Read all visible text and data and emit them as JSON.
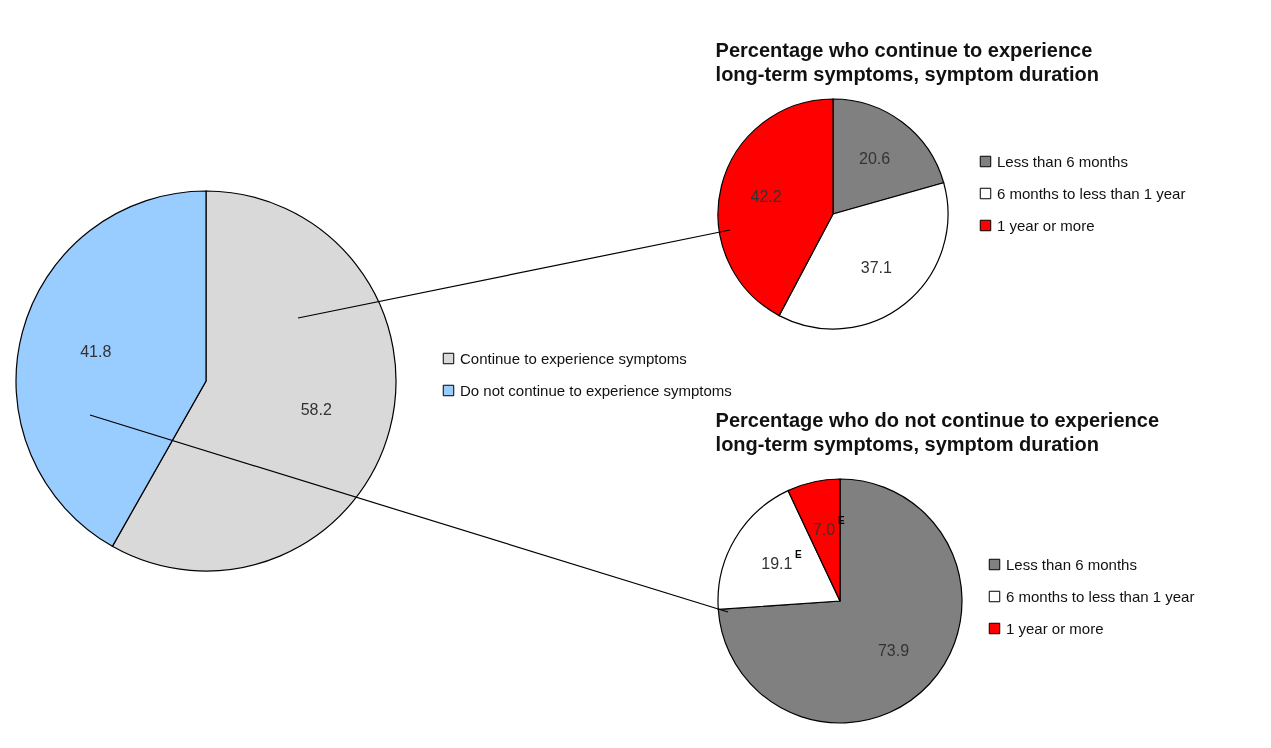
{
  "chart_data": [
    {
      "type": "pie",
      "categories": [
        "Continue to experience symptoms",
        "Do not continue to experience symptoms"
      ],
      "values": [
        58.2,
        41.8
      ],
      "colors": [
        "#d9d9d9",
        "#99ccff"
      ],
      "data_labels": true,
      "legend": "right"
    },
    {
      "type": "pie",
      "title": "Percentage who continue to experience long-term symptoms, symptom duration",
      "categories": [
        "Less than 6 months",
        "6 months to less than 1 year",
        "1 year or more"
      ],
      "values": [
        20.6,
        37.1,
        42.2
      ],
      "colors": [
        "#808080",
        "#ffffff",
        "#ff0000"
      ],
      "data_labels": true,
      "legend": "right"
    },
    {
      "type": "pie",
      "title": "Percentage who do not continue to experience long-term symptoms, symptom duration",
      "categories": [
        "Less than 6 months",
        "6 months to less than 1 year",
        "1 year or more"
      ],
      "values": [
        73.9,
        19.1,
        7.0
      ],
      "value_labels": [
        "73.9",
        "19.1$^{E}$",
        "7.0$^{E}$"
      ],
      "colors": [
        "#808080",
        "#ffffff",
        "#ff0000"
      ],
      "legend": "right"
    }
  ]
}
